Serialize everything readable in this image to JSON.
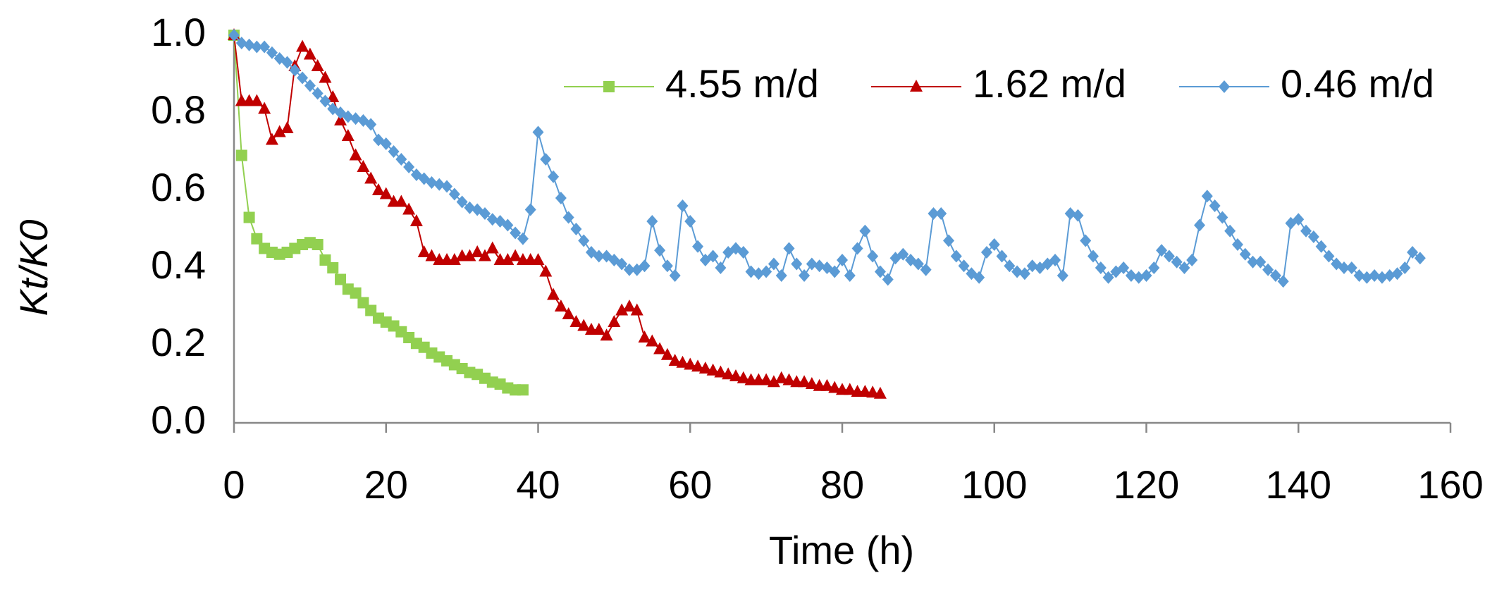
{
  "chart_data": {
    "type": "line",
    "x_label": "Time (h)",
    "y_label": "Kt/K0",
    "xlim": [
      0,
      160
    ],
    "xticks": [
      0,
      20,
      40,
      60,
      80,
      100,
      120,
      140,
      160
    ],
    "ylim": [
      0,
      1
    ],
    "yticks": [
      {
        "value": 0,
        "label": "0.0"
      },
      0.2,
      0.4,
      0.6,
      0.8,
      {
        "value": 1,
        "label": "1.0"
      }
    ],
    "grid": false,
    "legend": "top-right",
    "series": [
      {
        "name": "4.55 m/d",
        "color": "#92d050",
        "marker": "square",
        "x": [
          0,
          1,
          2,
          3,
          4,
          5,
          6,
          7,
          8,
          9,
          10,
          11,
          12,
          13,
          14,
          15,
          16,
          17,
          18,
          19,
          20,
          21,
          22,
          23,
          24,
          25,
          26,
          27,
          28,
          29,
          30,
          31,
          32,
          33,
          34,
          35,
          36,
          37,
          38
        ],
        "values": [
          1.0,
          0.69,
          0.53,
          0.475,
          0.45,
          0.44,
          0.435,
          0.44,
          0.45,
          0.46,
          0.465,
          0.46,
          0.42,
          0.4,
          0.37,
          0.345,
          0.335,
          0.31,
          0.29,
          0.27,
          0.26,
          0.25,
          0.235,
          0.22,
          0.205,
          0.195,
          0.18,
          0.17,
          0.16,
          0.15,
          0.14,
          0.13,
          0.125,
          0.115,
          0.105,
          0.1,
          0.09,
          0.085,
          0.085
        ]
      },
      {
        "name": "1.62 m/d",
        "color": "#c00000",
        "marker": "triangle",
        "x": [
          0,
          1,
          2,
          3,
          4,
          5,
          6,
          7,
          8,
          9,
          10,
          11,
          12,
          13,
          14,
          15,
          16,
          17,
          18,
          19,
          20,
          21,
          22,
          23,
          24,
          25,
          26,
          27,
          28,
          29,
          30,
          31,
          32,
          33,
          34,
          35,
          36,
          37,
          38,
          39,
          40,
          41,
          42,
          43,
          44,
          45,
          46,
          47,
          48,
          49,
          50,
          51,
          52,
          53,
          54,
          55,
          56,
          57,
          58,
          59,
          60,
          61,
          62,
          63,
          64,
          65,
          66,
          67,
          68,
          69,
          70,
          71,
          72,
          73,
          74,
          75,
          76,
          77,
          78,
          79,
          80,
          81,
          82,
          83,
          84,
          85
        ],
        "values": [
          1.0,
          0.83,
          0.83,
          0.83,
          0.81,
          0.73,
          0.75,
          0.76,
          0.92,
          0.97,
          0.95,
          0.92,
          0.89,
          0.84,
          0.78,
          0.74,
          0.69,
          0.66,
          0.63,
          0.6,
          0.59,
          0.57,
          0.57,
          0.55,
          0.52,
          0.44,
          0.43,
          0.42,
          0.42,
          0.42,
          0.43,
          0.43,
          0.44,
          0.43,
          0.45,
          0.42,
          0.42,
          0.43,
          0.42,
          0.42,
          0.42,
          0.39,
          0.33,
          0.3,
          0.28,
          0.26,
          0.25,
          0.24,
          0.24,
          0.225,
          0.26,
          0.29,
          0.3,
          0.29,
          0.22,
          0.21,
          0.19,
          0.175,
          0.16,
          0.155,
          0.15,
          0.145,
          0.14,
          0.135,
          0.13,
          0.125,
          0.12,
          0.115,
          0.11,
          0.11,
          0.11,
          0.105,
          0.115,
          0.11,
          0.105,
          0.105,
          0.1,
          0.095,
          0.095,
          0.09,
          0.085,
          0.085,
          0.08,
          0.08,
          0.078,
          0.075
        ]
      },
      {
        "name": "0.46 m/d",
        "color": "#5b9bd5",
        "marker": "diamond",
        "x": [
          0,
          1,
          2,
          3,
          4,
          5,
          6,
          7,
          8,
          9,
          10,
          11,
          12,
          13,
          14,
          15,
          16,
          17,
          18,
          19,
          20,
          21,
          22,
          23,
          24,
          25,
          26,
          27,
          28,
          29,
          30,
          31,
          32,
          33,
          34,
          35,
          36,
          37,
          38,
          39,
          40,
          41,
          42,
          43,
          44,
          45,
          46,
          47,
          48,
          49,
          50,
          51,
          52,
          53,
          54,
          55,
          56,
          57,
          58,
          59,
          60,
          61,
          62,
          63,
          64,
          65,
          66,
          67,
          68,
          69,
          70,
          71,
          72,
          73,
          74,
          75,
          76,
          77,
          78,
          79,
          80,
          81,
          82,
          83,
          84,
          85,
          86,
          87,
          88,
          89,
          90,
          91,
          92,
          93,
          94,
          95,
          96,
          97,
          98,
          99,
          100,
          101,
          102,
          103,
          104,
          105,
          106,
          107,
          108,
          109,
          110,
          111,
          112,
          113,
          114,
          115,
          116,
          117,
          118,
          119,
          120,
          121,
          122,
          123,
          124,
          125,
          126,
          127,
          128,
          129,
          130,
          131,
          132,
          133,
          134,
          135,
          136,
          137,
          138,
          139,
          140,
          141,
          142,
          143,
          144,
          145,
          146,
          147,
          148,
          149,
          150,
          151,
          152,
          153,
          154,
          155,
          156
        ],
        "values": [
          1.0,
          0.98,
          0.975,
          0.97,
          0.97,
          0.955,
          0.94,
          0.93,
          0.91,
          0.89,
          0.87,
          0.85,
          0.83,
          0.81,
          0.8,
          0.79,
          0.785,
          0.78,
          0.77,
          0.73,
          0.72,
          0.7,
          0.68,
          0.66,
          0.64,
          0.63,
          0.62,
          0.615,
          0.61,
          0.59,
          0.57,
          0.555,
          0.55,
          0.54,
          0.525,
          0.52,
          0.51,
          0.49,
          0.475,
          0.55,
          0.75,
          0.68,
          0.635,
          0.58,
          0.53,
          0.5,
          0.47,
          0.44,
          0.43,
          0.43,
          0.42,
          0.41,
          0.395,
          0.395,
          0.405,
          0.52,
          0.445,
          0.405,
          0.38,
          0.56,
          0.52,
          0.455,
          0.42,
          0.43,
          0.4,
          0.44,
          0.45,
          0.44,
          0.39,
          0.385,
          0.39,
          0.41,
          0.38,
          0.45,
          0.41,
          0.38,
          0.41,
          0.405,
          0.4,
          0.39,
          0.42,
          0.38,
          0.45,
          0.495,
          0.43,
          0.39,
          0.37,
          0.425,
          0.435,
          0.42,
          0.41,
          0.395,
          0.54,
          0.54,
          0.47,
          0.43,
          0.405,
          0.385,
          0.375,
          0.44,
          0.46,
          0.43,
          0.405,
          0.39,
          0.385,
          0.405,
          0.4,
          0.41,
          0.42,
          0.38,
          0.54,
          0.535,
          0.47,
          0.43,
          0.4,
          0.375,
          0.39,
          0.4,
          0.38,
          0.375,
          0.38,
          0.4,
          0.445,
          0.43,
          0.415,
          0.4,
          0.42,
          0.51,
          0.585,
          0.56,
          0.53,
          0.495,
          0.46,
          0.435,
          0.415,
          0.415,
          0.395,
          0.38,
          0.365,
          0.515,
          0.525,
          0.495,
          0.48,
          0.455,
          0.43,
          0.41,
          0.4,
          0.4,
          0.38,
          0.375,
          0.38,
          0.375,
          0.38,
          0.385,
          0.4,
          0.44,
          0.425
        ]
      }
    ]
  }
}
